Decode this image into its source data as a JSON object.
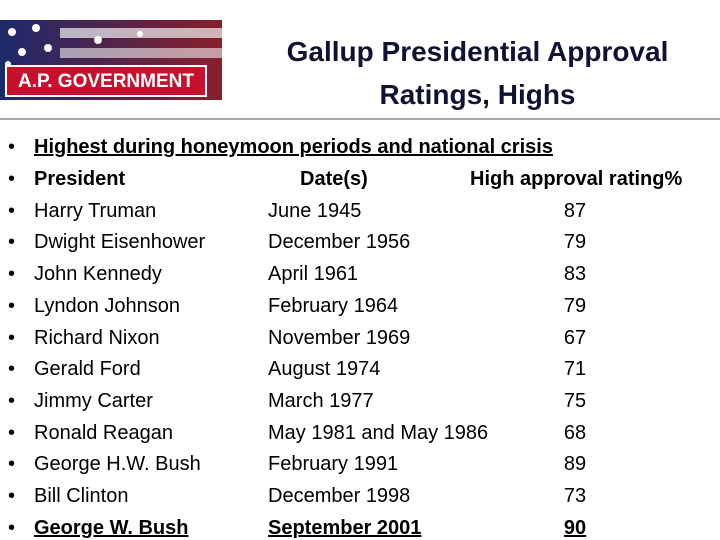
{
  "header": {
    "title": "Gallup Presidential Approval Ratings, Highs",
    "logo": "A.P. GOVERNMENT"
  },
  "intro": "Highest during honeymoon periods and national crisis",
  "table": {
    "columns": [
      "President",
      "Date(s)",
      "High approval rating%"
    ],
    "rows": [
      [
        "Harry Truman",
        "June 1945",
        87
      ],
      [
        "Dwight Eisenhower",
        "December 1956",
        79
      ],
      [
        "John Kennedy",
        "April 1961",
        83
      ],
      [
        "Lyndon Johnson",
        "February 1964",
        79
      ],
      [
        "Richard Nixon",
        "November 1969",
        67
      ],
      [
        "Gerald Ford",
        "August 1974",
        71
      ],
      [
        "Jimmy Carter",
        "March 1977",
        75
      ],
      [
        "Ronald Reagan",
        "May 1981 and May 1986",
        68
      ],
      [
        "George H.W. Bush",
        "February 1991",
        89
      ],
      [
        "Bill Clinton",
        "December 1998",
        73
      ],
      [
        "George W. Bush",
        "September 2001",
        90
      ]
    ]
  }
}
